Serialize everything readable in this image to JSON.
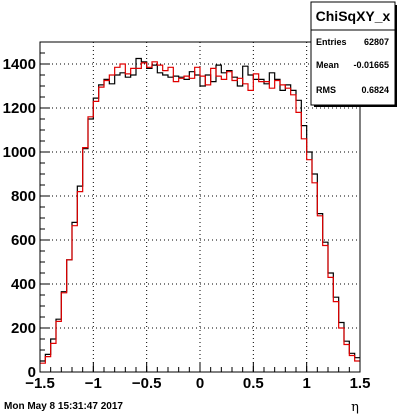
{
  "stats_box": {
    "title": "ChiSqXY_x",
    "rows": [
      {
        "label": "Entries",
        "value": "62807"
      },
      {
        "label": "Mean",
        "value": "-0.01665"
      },
      {
        "label": "RMS",
        "value": "0.6824"
      }
    ]
  },
  "timestamp": "Mon May  8 15:31:47 2017",
  "chart_data": {
    "type": "histogram",
    "title": "",
    "xlabel": "η",
    "ylabel": "",
    "xlim": [
      -1.5,
      1.5
    ],
    "ylim": [
      0,
      1500
    ],
    "x_ticks": [
      -1.5,
      -1,
      -0.5,
      0,
      0.5,
      1,
      1.5
    ],
    "x_tick_labels": [
      "−1.5",
      "−1",
      "−0.5",
      "0",
      "0.5",
      "1",
      "1.5"
    ],
    "y_ticks": [
      0,
      200,
      400,
      600,
      800,
      1000,
      1200,
      1400
    ],
    "y_tick_labels": [
      "0",
      "200",
      "400",
      "600",
      "800",
      "1000",
      "1200",
      "1400"
    ],
    "grid": true,
    "bin_edges_start": -1.5,
    "bin_width": 0.05,
    "series": [
      {
        "color": "#000000",
        "values": [
          50,
          80,
          150,
          240,
          365,
          510,
          680,
          845,
          1015,
          1150,
          1245,
          1305,
          1330,
          1310,
          1350,
          1360,
          1340,
          1350,
          1425,
          1410,
          1380,
          1395,
          1360,
          1350,
          1340,
          1345,
          1340,
          1330,
          1365,
          1350,
          1300,
          1350,
          1320,
          1395,
          1360,
          1370,
          1340,
          1300,
          1390,
          1350,
          1330,
          1330,
          1310,
          1360,
          1330,
          1280,
          1305,
          1280,
          1235,
          1120,
          1000,
          900,
          720,
          590,
          450,
          340,
          225,
          140,
          85,
          65
        ]
      },
      {
        "color": "#e00000",
        "values": [
          40,
          70,
          130,
          230,
          360,
          510,
          665,
          820,
          1020,
          1160,
          1230,
          1295,
          1325,
          1350,
          1385,
          1400,
          1355,
          1380,
          1380,
          1405,
          1385,
          1410,
          1395,
          1370,
          1385,
          1320,
          1335,
          1345,
          1335,
          1385,
          1345,
          1305,
          1380,
          1345,
          1330,
          1365,
          1325,
          1335,
          1310,
          1280,
          1355,
          1320,
          1320,
          1290,
          1325,
          1305,
          1290,
          1260,
          1180,
          1060,
          965,
          860,
          710,
          575,
          430,
          320,
          200,
          125,
          75,
          50
        ]
      }
    ]
  }
}
